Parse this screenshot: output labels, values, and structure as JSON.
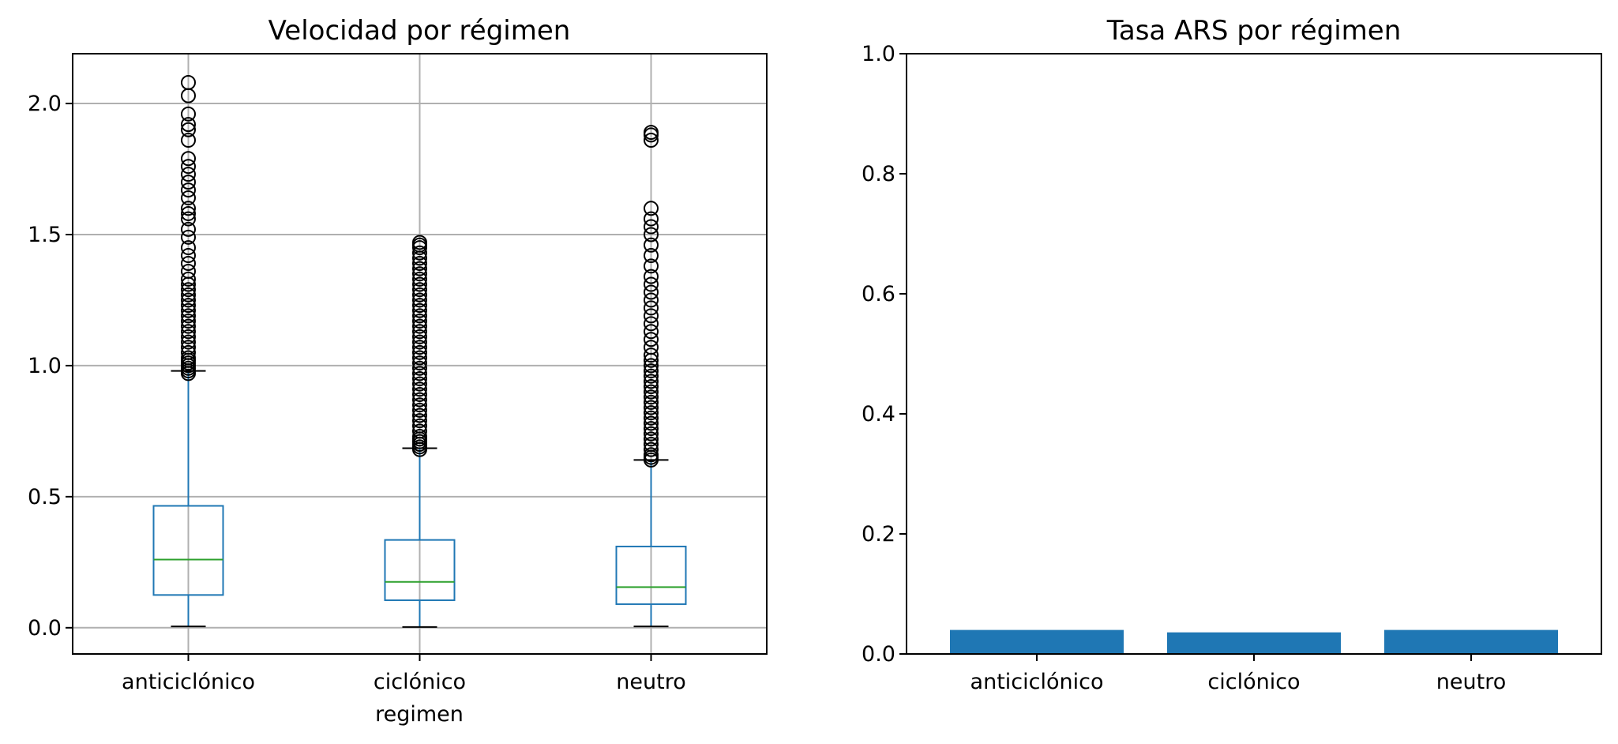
{
  "chart_data": [
    {
      "type": "box",
      "title": "Velocidad por régimen",
      "xlabel": "regimen",
      "ylabel": "",
      "ylim": [
        -0.1,
        2.19
      ],
      "yticks": [
        "0.0",
        "0.5",
        "1.0",
        "1.5",
        "2.0"
      ],
      "grid": true,
      "categories": [
        "anticiclónico",
        "ciclónico",
        "neutro"
      ],
      "colors": {
        "box": "#1f77b4",
        "median": "#2ca02c",
        "flier": "#000000"
      },
      "boxes": [
        {
          "category": "anticiclónico",
          "whisker_low": 0.005,
          "q1": 0.125,
          "median": 0.26,
          "q3": 0.465,
          "whisker_high": 0.98,
          "outliers": [
            0.97,
            0.98,
            0.99,
            1.0,
            1.01,
            1.02,
            1.03,
            1.05,
            1.07,
            1.09,
            1.11,
            1.13,
            1.15,
            1.17,
            1.19,
            1.21,
            1.23,
            1.25,
            1.27,
            1.29,
            1.31,
            1.33,
            1.36,
            1.39,
            1.42,
            1.45,
            1.49,
            1.52,
            1.56,
            1.58,
            1.6,
            1.64,
            1.67,
            1.7,
            1.73,
            1.76,
            1.79,
            1.86,
            1.9,
            1.92,
            1.96,
            2.03,
            2.08
          ]
        },
        {
          "category": "ciclónico",
          "whisker_low": 0.003,
          "q1": 0.105,
          "median": 0.175,
          "q3": 0.335,
          "whisker_high": 0.685,
          "outliers": [
            0.68,
            0.69,
            0.7,
            0.71,
            0.72,
            0.73,
            0.75,
            0.77,
            0.79,
            0.81,
            0.83,
            0.85,
            0.87,
            0.89,
            0.91,
            0.93,
            0.95,
            0.97,
            0.99,
            1.01,
            1.03,
            1.05,
            1.07,
            1.09,
            1.11,
            1.13,
            1.15,
            1.17,
            1.19,
            1.21,
            1.23,
            1.25,
            1.27,
            1.29,
            1.31,
            1.33,
            1.35,
            1.37,
            1.39,
            1.41,
            1.43,
            1.45,
            1.46,
            1.47
          ]
        },
        {
          "category": "neutro",
          "whisker_low": 0.005,
          "q1": 0.09,
          "median": 0.155,
          "q3": 0.31,
          "whisker_high": 0.64,
          "outliers": [
            0.64,
            0.65,
            0.66,
            0.68,
            0.7,
            0.72,
            0.74,
            0.76,
            0.78,
            0.8,
            0.82,
            0.84,
            0.86,
            0.88,
            0.9,
            0.92,
            0.94,
            0.96,
            0.98,
            1.0,
            1.02,
            1.04,
            1.07,
            1.1,
            1.13,
            1.16,
            1.19,
            1.22,
            1.25,
            1.28,
            1.31,
            1.34,
            1.38,
            1.42,
            1.46,
            1.5,
            1.53,
            1.56,
            1.6,
            1.86,
            1.88,
            1.89
          ]
        }
      ]
    },
    {
      "type": "bar",
      "title": "Tasa ARS por régimen",
      "xlabel": "",
      "ylabel": "",
      "ylim": [
        0,
        1.0
      ],
      "yticks": [
        "0.0",
        "0.2",
        "0.4",
        "0.6",
        "0.8",
        "1.0"
      ],
      "grid": false,
      "categories": [
        "anticiclónico",
        "ciclónico",
        "neutro"
      ],
      "values": [
        0.04,
        0.036,
        0.04
      ],
      "color": "#1f77b4"
    }
  ]
}
